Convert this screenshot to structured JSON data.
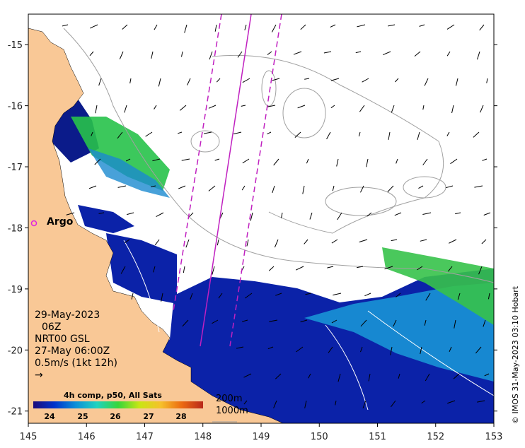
{
  "map": {
    "lon_range": [
      145,
      153
    ],
    "lat_range": [
      -21.2,
      -14.5
    ],
    "x_ticks": [
      "145",
      "146",
      "147",
      "148",
      "149",
      "150",
      "151",
      "152",
      "153"
    ],
    "y_ticks": [
      "-15",
      "-16",
      "-17",
      "-18",
      "-19",
      "-20",
      "-21"
    ],
    "land_color": "#f9c896",
    "isobath_color": "#a0a0a0",
    "track_color": "#c020c0"
  },
  "overlay": {
    "date": "29-May-2023",
    "hour": "06Z",
    "product": "NRT00 GSL",
    "product_time": "27-May 06:00Z",
    "scale": "0.5m/s (1kt 12h)"
  },
  "argo": {
    "label": "Argo",
    "lon": 145.08,
    "lat": -18.08
  },
  "colorbar": {
    "title": "4h comp, p50, All Sats",
    "labels": [
      "24",
      "25",
      "26",
      "27",
      "28"
    ],
    "colors": [
      "#1c0b7a",
      "#0033cc",
      "#0a8fd8",
      "#1fd3c0",
      "#37d63a",
      "#c8e614",
      "#f6c12b",
      "#ec6a12",
      "#b8281a"
    ]
  },
  "isobaths": {
    "shallow": "200m",
    "deep": "1000m"
  },
  "credit": "© IMOS 31-May-2023 03:10 Hobart"
}
